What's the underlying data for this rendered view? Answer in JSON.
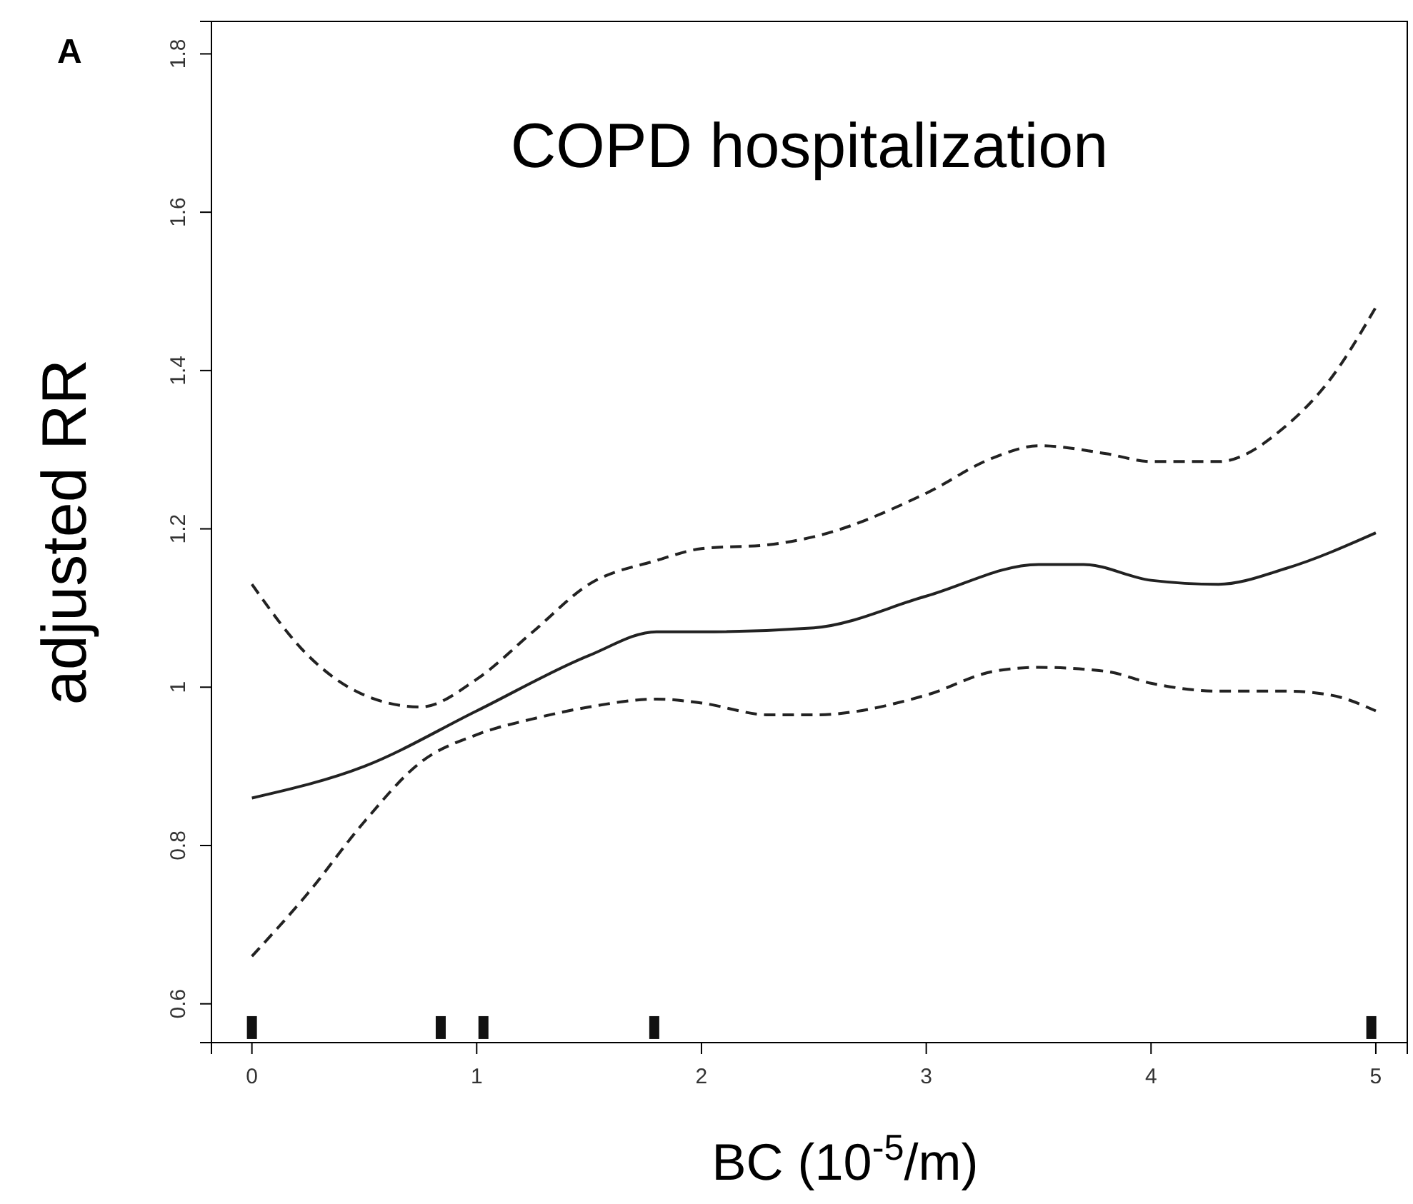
{
  "chart_data": {
    "type": "line",
    "title": "COPD hospitalization",
    "xlabel": "BC (10$^{-5}$/m)",
    "ylabel": "adjusted RR",
    "annotations": [
      "A"
    ],
    "xlim": [
      -0.18,
      5.14
    ],
    "ylim": [
      0.551,
      1.841
    ],
    "xticks": [
      0,
      1,
      2,
      3,
      4,
      5
    ],
    "yticks": [
      0.6,
      0.8,
      1.0,
      1.2,
      1.4,
      1.6,
      1.8
    ],
    "grid": false,
    "series": [
      {
        "color": "#222222",
        "line_style": "solid",
        "x": [
          0,
          0.5,
          1,
          1.5,
          1.8,
          2,
          2.5,
          3,
          3.5,
          3.7,
          4,
          4.3,
          4.6,
          5
        ],
        "values": [
          0.86,
          0.9,
          0.97,
          1.04,
          1.07,
          1.07,
          1.075,
          1.115,
          1.155,
          1.155,
          1.135,
          1.13,
          1.15,
          1.195
        ]
      },
      {
        "color": "#222222",
        "line_style": "dashed",
        "x": [
          0,
          0.25,
          0.5,
          0.75,
          1,
          1.25,
          1.5,
          1.8,
          2,
          2.3,
          2.5,
          3,
          3.3,
          3.5,
          3.8,
          4,
          4.3,
          4.6,
          4.8,
          5
        ],
        "values": [
          1.13,
          1.04,
          0.99,
          0.975,
          1.01,
          1.07,
          1.13,
          1.16,
          1.175,
          1.18,
          1.19,
          1.245,
          1.29,
          1.305,
          1.295,
          1.285,
          1.285,
          1.33,
          1.39,
          1.48
        ]
      },
      {
        "color": "#222222",
        "line_style": "dashed",
        "x": [
          0,
          0.25,
          0.5,
          0.75,
          1,
          1.25,
          1.5,
          1.8,
          2,
          2.3,
          2.5,
          3,
          3.3,
          3.5,
          3.8,
          4,
          4.3,
          4.6,
          4.8,
          5
        ],
        "values": [
          0.66,
          0.74,
          0.83,
          0.905,
          0.94,
          0.96,
          0.975,
          0.985,
          0.98,
          0.965,
          0.965,
          0.99,
          1.02,
          1.025,
          1.02,
          1.005,
          0.995,
          0.995,
          0.99,
          0.97
        ]
      },
      {
        "type": "scatter",
        "color": "#111111",
        "marker": "square",
        "x": [
          0,
          0.84,
          1.03,
          1.79,
          4.98
        ],
        "values": [
          0.57,
          0.57,
          0.57,
          0.57,
          0.57
        ]
      }
    ]
  }
}
